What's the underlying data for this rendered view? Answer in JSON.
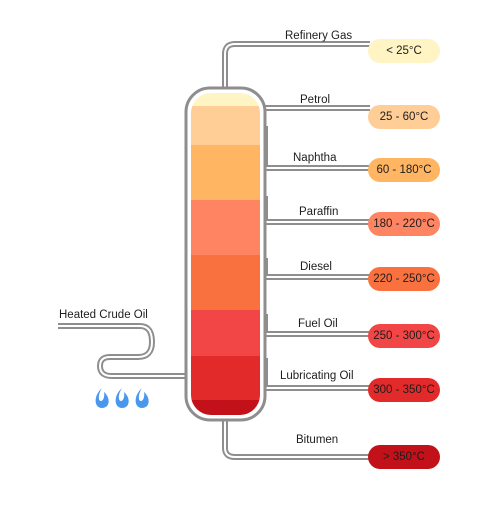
{
  "input_label": "Heated Crude Oil",
  "fractions": [
    {
      "name": "Refinery Gas",
      "temp": "< 25°C",
      "color": "#fff4c4"
    },
    {
      "name": "Petrol",
      "temp": "25 - 60°C",
      "color": "#ffcd96"
    },
    {
      "name": "Naphtha",
      "temp": "60 - 180°C",
      "color": "#ffb561"
    },
    {
      "name": "Paraffin",
      "temp": "180 - 220°C",
      "color": "#ff8461"
    },
    {
      "name": "Diesel",
      "temp": "220 - 250°C",
      "color": "#fa7140"
    },
    {
      "name": "Fuel Oil",
      "temp": "250 - 300°C",
      "color": "#f24646"
    },
    {
      "name": "Lubricating Oil",
      "temp": "300 - 350°C",
      "color": "#e22a2a"
    },
    {
      "name": "Bitumen",
      "temp": "> 350°C",
      "color": "#c3111a"
    }
  ],
  "colors": {
    "pipe": "#8e8e8e",
    "flame": "#4a98ee",
    "column_top": "#fff4c4",
    "column_bottom": "#b7151a"
  },
  "icons": [
    "flame-icon",
    "flame-icon",
    "flame-icon"
  ]
}
